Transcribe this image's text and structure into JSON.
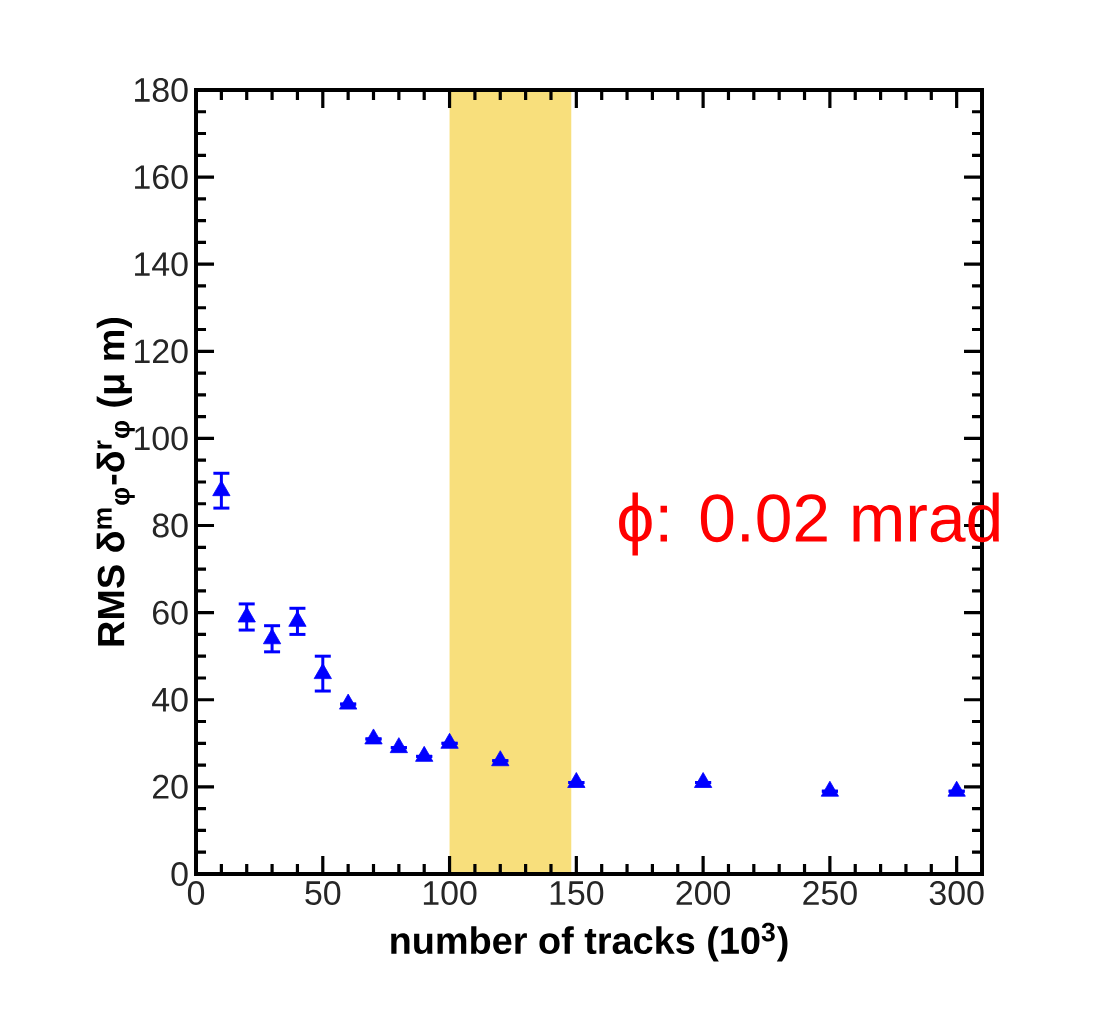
{
  "chart_data": {
    "type": "scatter",
    "xlabel": "number of tracks (10$^{3}$)",
    "ylabel": "RMS δ$^{m}$$_{φ}$-δ$^{r}$$_{φ}$ (μ m)",
    "x": [
      10,
      20,
      30,
      40,
      50,
      60,
      70,
      80,
      90,
      100,
      120,
      150,
      200,
      250,
      300
    ],
    "values": [
      88,
      59,
      54,
      58,
      46,
      39,
      31,
      29,
      27,
      30,
      26,
      21,
      21,
      19,
      19
    ],
    "errors": [
      4,
      3,
      3,
      3,
      4,
      null,
      null,
      null,
      null,
      null,
      null,
      null,
      null,
      null,
      null
    ],
    "color": "#0000ff",
    "marker": "triangle",
    "xlim": [
      0,
      310
    ],
    "ylim": [
      0,
      180
    ],
    "xticks": [
      0,
      50,
      100,
      150,
      200,
      250,
      300
    ],
    "yticks": [
      0,
      20,
      40,
      60,
      80,
      100,
      120,
      140,
      160,
      180
    ],
    "bands": [
      {
        "axis": "x",
        "from": 100,
        "to": 148,
        "color": "#f8df7c"
      }
    ],
    "annotations": [
      "ϕ: 0.02 mrad"
    ]
  }
}
